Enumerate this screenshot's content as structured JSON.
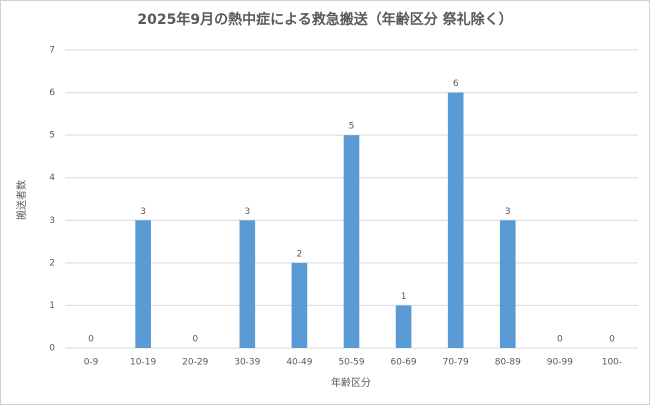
{
  "chart_data": {
    "type": "bar",
    "title": "2025年9月の熱中症による救急搬送（年齢区分 祭礼除く）",
    "x_label": "年齢区分",
    "y_label": "搬送者数",
    "categories": [
      "0-9",
      "10-19",
      "20-29",
      "30-39",
      "40-49",
      "50-59",
      "60-69",
      "70-79",
      "80-89",
      "90-99",
      "100-"
    ],
    "values": [
      0,
      3,
      0,
      3,
      2,
      5,
      1,
      6,
      3,
      0,
      0
    ],
    "color": "#5b9bd5",
    "ylim": [
      0,
      7
    ],
    "yticks": [
      0,
      1,
      2,
      3,
      4,
      5,
      6,
      7
    ],
    "grid": true
  }
}
